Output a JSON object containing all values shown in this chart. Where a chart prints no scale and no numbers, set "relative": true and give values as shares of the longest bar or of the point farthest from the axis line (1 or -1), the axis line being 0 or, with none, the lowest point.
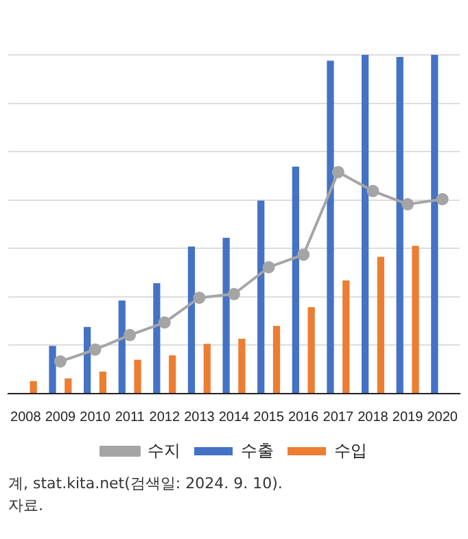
{
  "chart_data": {
    "type": "bar",
    "relative": true,
    "categories": [
      "2008",
      "2009",
      "2010",
      "2011",
      "2012",
      "2013",
      "2014",
      "2015",
      "2016",
      "2017",
      "2018",
      "2019",
      "2020"
    ],
    "series": [
      {
        "name": "수출",
        "color": "#4472c4",
        "values": [
          null,
          0.141,
          0.197,
          0.275,
          0.326,
          0.434,
          0.46,
          0.57,
          0.67,
          0.983,
          1,
          0.994,
          1
        ]
      },
      {
        "name": "수입",
        "color": "#ed7d31",
        "values": [
          0.037,
          0.045,
          0.065,
          0.1,
          0.113,
          0.147,
          0.162,
          0.2,
          0.255,
          0.334,
          0.404,
          0.436,
          null
        ]
      },
      {
        "name": "수지",
        "type": "line",
        "color": "#a5a5a5",
        "values": [
          null,
          0.095,
          0.13,
          0.173,
          0.21,
          0.283,
          0.294,
          0.373,
          0.41,
          0.654,
          0.598,
          0.559,
          0.574
        ]
      }
    ],
    "grid": "y",
    "legend": "bottom",
    "marker": "circle",
    "line_style": "solid",
    "annotations": [
      "계, stat.kita.net(검색일: 2024. 9. 10).",
      "자료."
    ]
  }
}
